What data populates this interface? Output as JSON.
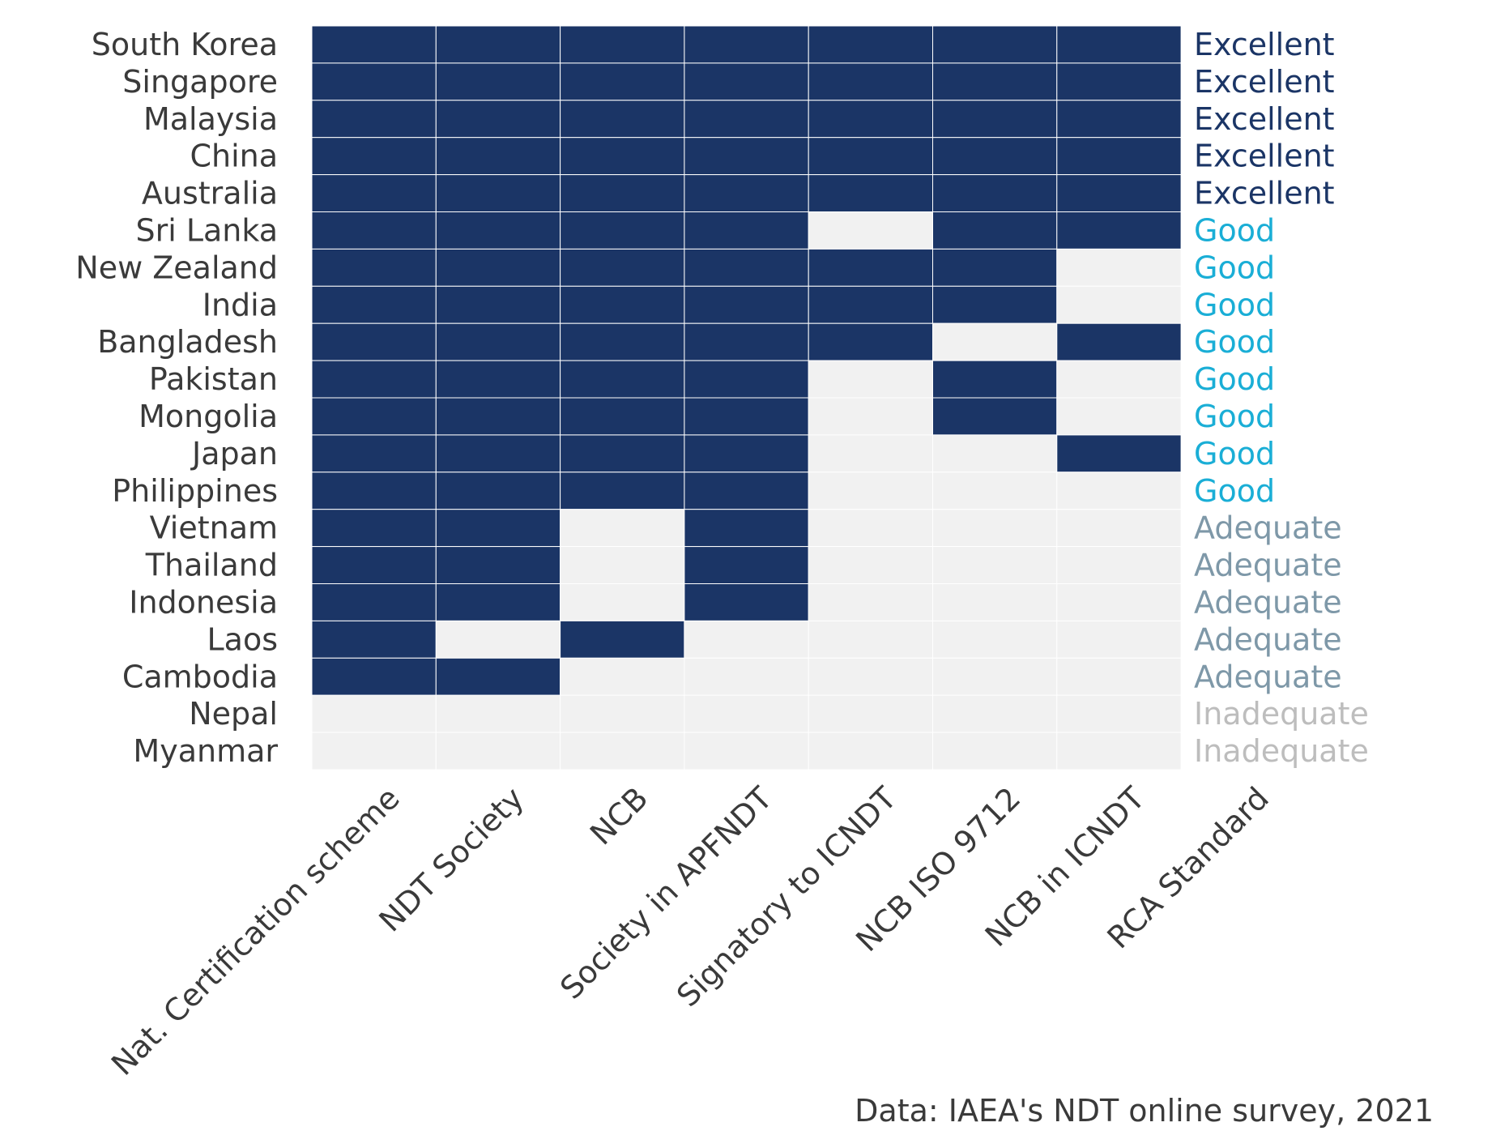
{
  "chart_data": {
    "type": "heatmap",
    "columns": [
      "Nat. Certification scheme",
      "NDT Society",
      "NCB",
      "Society in APFNDT",
      "Signatory to ICNDT",
      "NCB ISO 9712",
      "NCB in ICNDT",
      "RCA Standard"
    ],
    "rows": [
      "South Korea",
      "Singapore",
      "Malaysia",
      "China",
      "Australia",
      "Sri Lanka",
      "New Zealand",
      "India",
      "Bangladesh",
      "Pakistan",
      "Mongolia",
      "Japan",
      "Philippines",
      "Vietnam",
      "Thailand",
      "Indonesia",
      "Laos",
      "Cambodia",
      "Nepal",
      "Myanmar"
    ],
    "values": [
      [
        1,
        1,
        1,
        1,
        1,
        1,
        1
      ],
      [
        1,
        1,
        1,
        1,
        1,
        1,
        1
      ],
      [
        1,
        1,
        1,
        1,
        1,
        1,
        1
      ],
      [
        1,
        1,
        1,
        1,
        1,
        1,
        1
      ],
      [
        1,
        1,
        1,
        1,
        1,
        1,
        1
      ],
      [
        1,
        1,
        1,
        1,
        0,
        1,
        1
      ],
      [
        1,
        1,
        1,
        1,
        1,
        1,
        0
      ],
      [
        1,
        1,
        1,
        1,
        1,
        1,
        0
      ],
      [
        1,
        1,
        1,
        1,
        1,
        0,
        1
      ],
      [
        1,
        1,
        1,
        1,
        0,
        1,
        0
      ],
      [
        1,
        1,
        1,
        1,
        0,
        1,
        0
      ],
      [
        1,
        1,
        1,
        1,
        0,
        0,
        1
      ],
      [
        1,
        1,
        1,
        1,
        0,
        0,
        0
      ],
      [
        1,
        1,
        0,
        1,
        0,
        0,
        0
      ],
      [
        1,
        1,
        0,
        1,
        0,
        0,
        0
      ],
      [
        1,
        1,
        0,
        1,
        0,
        0,
        0
      ],
      [
        1,
        0,
        1,
        0,
        0,
        0,
        0
      ],
      [
        1,
        1,
        0,
        0,
        0,
        0,
        0
      ],
      [
        0,
        0,
        0,
        0,
        0,
        0,
        0
      ],
      [
        0,
        0,
        0,
        0,
        0,
        0,
        0
      ]
    ],
    "ratings": [
      "Excellent",
      "Excellent",
      "Excellent",
      "Excellent",
      "Excellent",
      "Good",
      "Good",
      "Good",
      "Good",
      "Good",
      "Good",
      "Good",
      "Good",
      "Adequate",
      "Adequate",
      "Adequate",
      "Adequate",
      "Adequate",
      "Inadequate",
      "Inadequate"
    ],
    "colors": {
      "filled": "#1b3566",
      "empty": "#f1f1f1",
      "Excellent": "#1b3566",
      "Good": "#1aaed6",
      "Adequate": "#7e98a8",
      "Inadequate": "#bdbdbd"
    },
    "caption": "Data: IAEA's NDT online survey, 2021"
  }
}
